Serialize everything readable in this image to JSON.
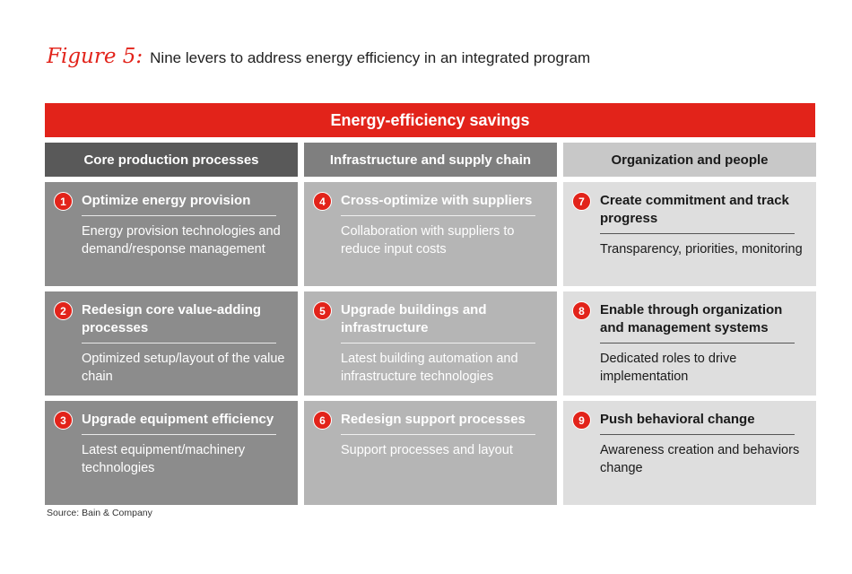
{
  "figure": {
    "label": "Figure 5:",
    "title": "Nine levers to address energy efficiency in an integrated program"
  },
  "banner": "Energy-efficiency savings",
  "columns": [
    "Core production processes",
    "Infrastructure and supply chain",
    "Organization and people"
  ],
  "levers": [
    {
      "number": "1",
      "title": "Optimize energy provision",
      "desc": "Energy provision technologies and demand/response management"
    },
    {
      "number": "2",
      "title": "Redesign core value-adding processes",
      "desc": "Optimized setup/layout of the value chain"
    },
    {
      "number": "3",
      "title": "Upgrade equipment efficiency",
      "desc": "Latest equipment/machinery technologies"
    },
    {
      "number": "4",
      "title": "Cross-optimize with suppliers",
      "desc": "Collaboration with suppliers to reduce input costs"
    },
    {
      "number": "5",
      "title": "Upgrade buildings and infrastructure",
      "desc": "Latest building automation and infrastructure technologies"
    },
    {
      "number": "6",
      "title": "Redesign support processes",
      "desc": "Support processes and layout"
    },
    {
      "number": "7",
      "title": "Create commitment and track progress",
      "desc": "Transparency, priorities, monitoring"
    },
    {
      "number": "8",
      "title": "Enable through organization and management systems",
      "desc": "Dedicated roles to drive implementation"
    },
    {
      "number": "9",
      "title": "Push behavioral change",
      "desc": "Awareness creation and behaviors change"
    }
  ],
  "colors": {
    "accent": "#e2231a",
    "column_1": "#8c8c8c",
    "column_2": "#b5b5b5",
    "column_3": "#dedede",
    "column_1_header": "#595959",
    "column_2_header": "#7f7f7f",
    "column_3_header": "#c8c8c8"
  },
  "source": "Source: Bain & Company"
}
